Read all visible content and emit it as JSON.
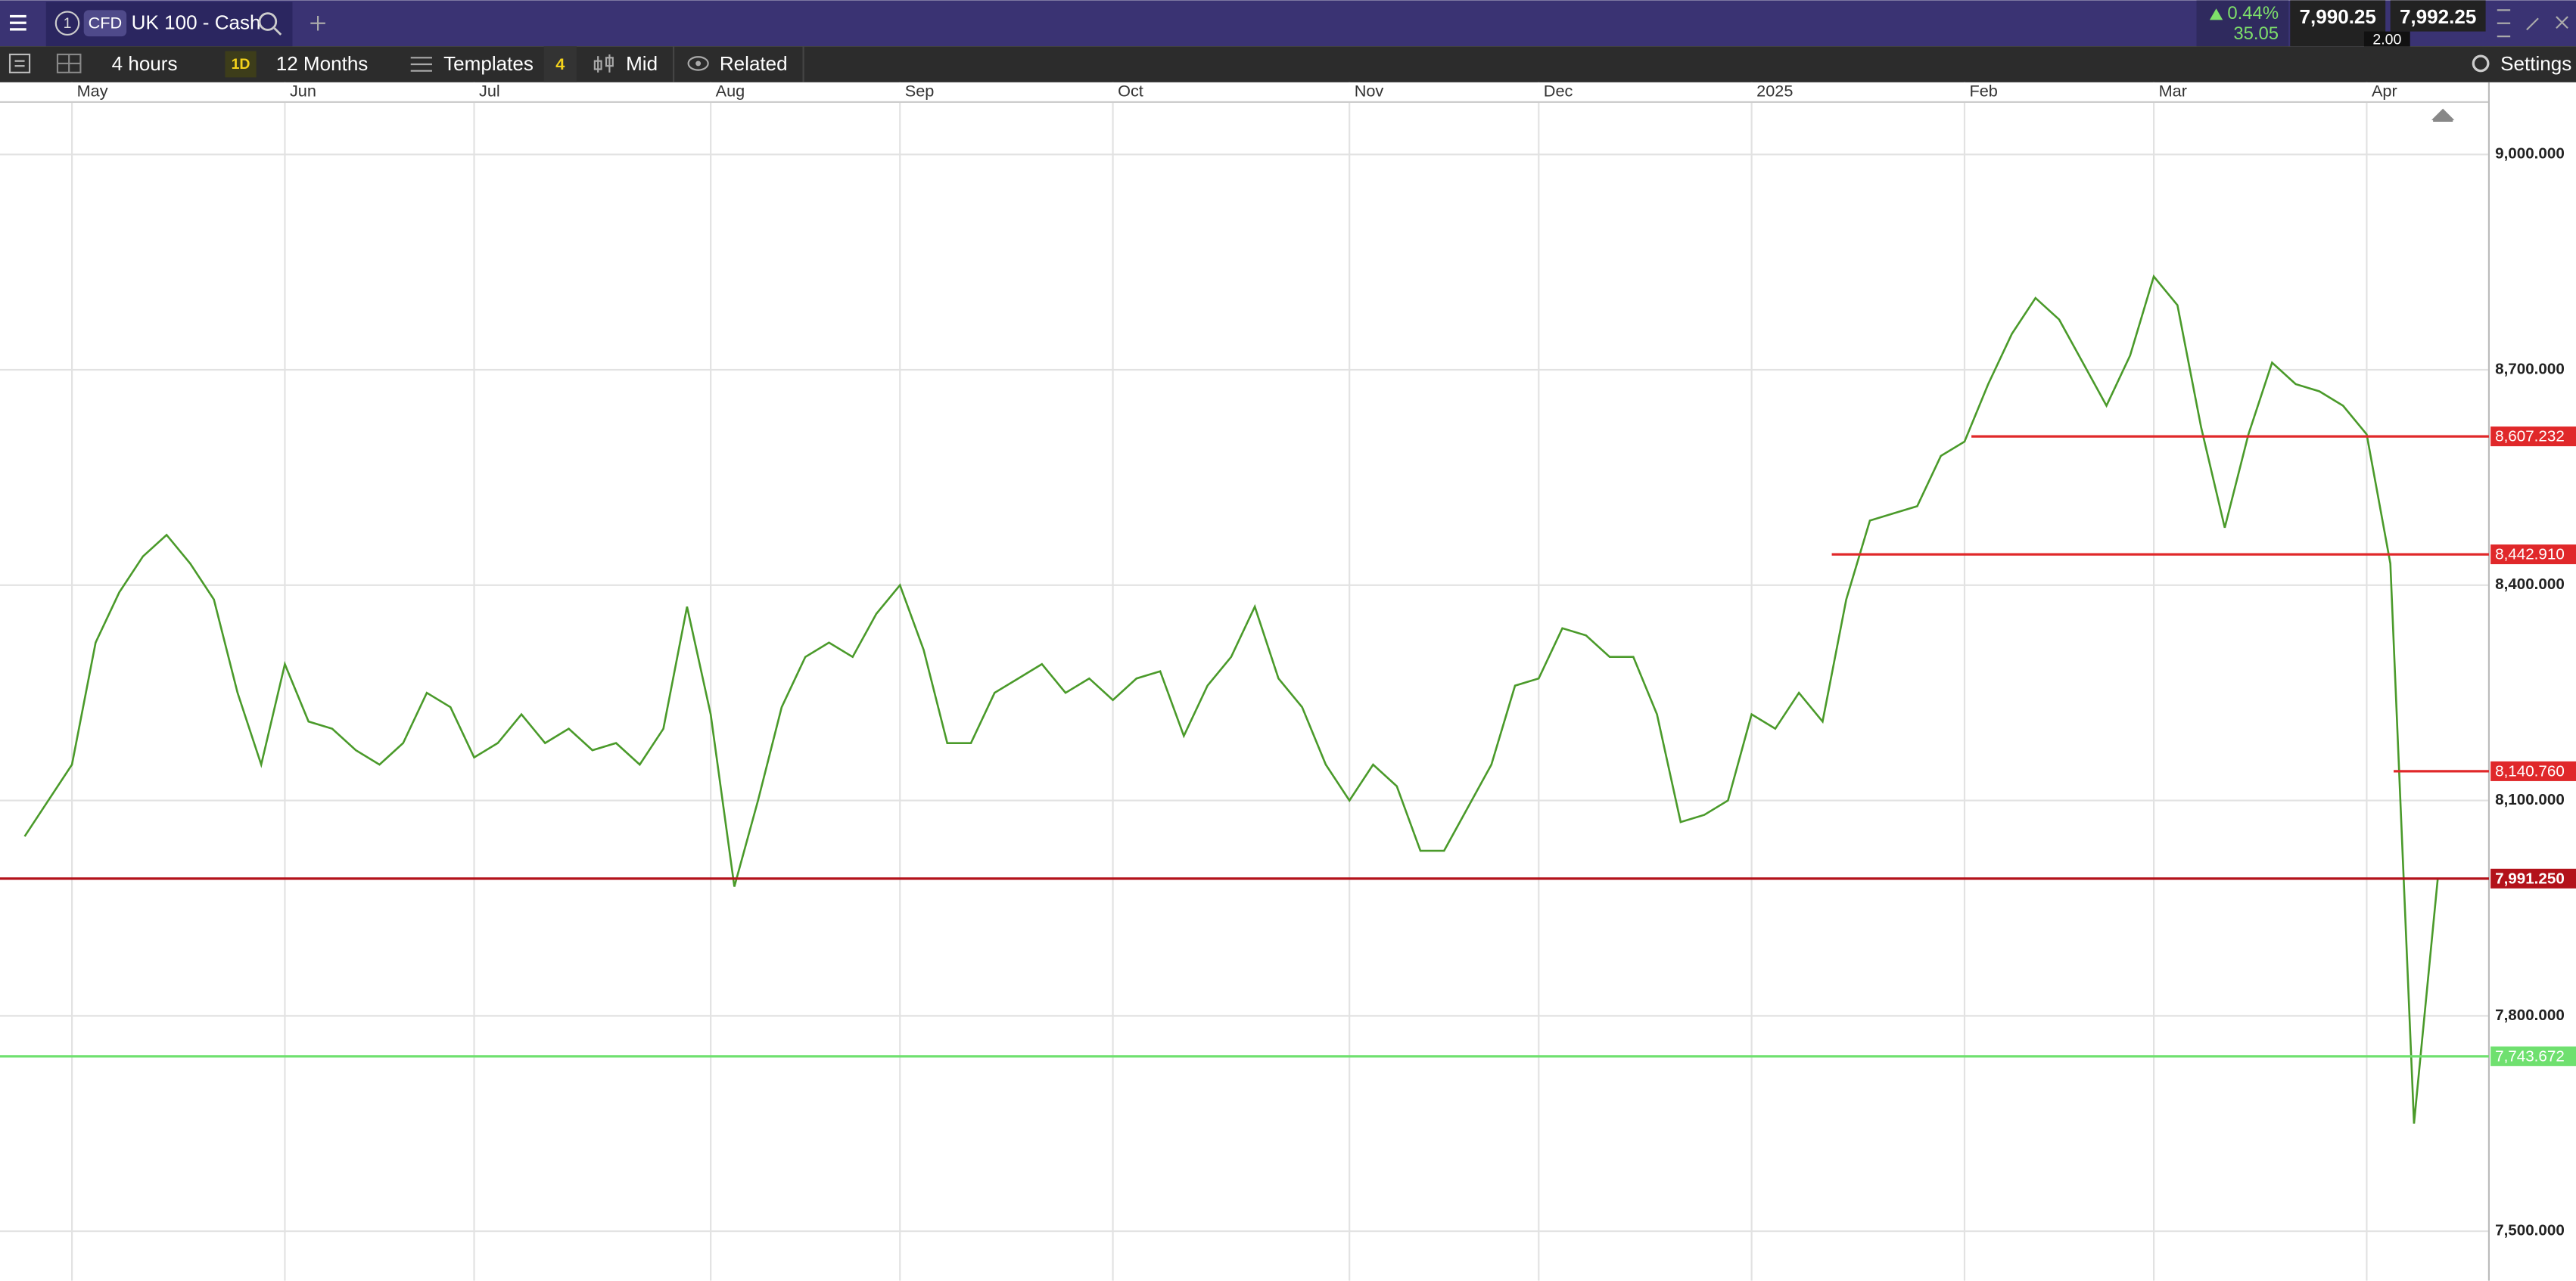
{
  "toolbar": {
    "instance": "1",
    "badge": "CFD",
    "instrument": "UK 100 - Cash",
    "change_pct": "0.44%",
    "change": "35.05",
    "sell": "7,990.25",
    "spread": "2.00",
    "buy": "7,992.25"
  },
  "controls": {
    "interval": "4 hours",
    "period_badge": "1D",
    "range": "12 Months",
    "templates": "Templates",
    "indicator_count": "4",
    "price_type": "Mid",
    "related": "Related",
    "settings": "Settings"
  },
  "chart_data": {
    "type": "line",
    "color": "#4a9a2a",
    "categories": [
      null,
      null,
      "May",
      null,
      null,
      null,
      null,
      null,
      null,
      null,
      null,
      "Jun",
      null,
      null,
      null,
      null,
      null,
      null,
      null,
      "Jul",
      null,
      null,
      null,
      null,
      null,
      null,
      null,
      null,
      null,
      "Aug",
      null,
      null,
      null,
      null,
      null,
      null,
      null,
      "Sep",
      null,
      null,
      null,
      null,
      null,
      null,
      null,
      null,
      "Oct",
      null,
      null,
      null,
      null,
      null,
      null,
      null,
      null,
      null,
      "Nov",
      null,
      null,
      null,
      null,
      null,
      null,
      null,
      "Dec",
      null,
      null,
      null,
      null,
      null,
      null,
      null,
      null,
      "2025",
      null,
      null,
      null,
      null,
      null,
      null,
      null,
      null,
      "Feb",
      null,
      null,
      null,
      null,
      null,
      null,
      null,
      "Mar",
      null,
      null,
      null,
      null,
      null,
      null,
      null,
      null,
      "Apr",
      null,
      null,
      null
    ],
    "values": [
      8050,
      8100,
      8150,
      8320,
      8390,
      8440,
      8470,
      8430,
      8380,
      8250,
      8150,
      8290,
      8210,
      8200,
      8170,
      8150,
      8180,
      8250,
      8230,
      8160,
      8180,
      8220,
      8180,
      8200,
      8170,
      8180,
      8150,
      8200,
      8370,
      8220,
      7980,
      8100,
      8230,
      8300,
      8320,
      8300,
      8360,
      8400,
      8310,
      8180,
      8180,
      8250,
      8270,
      8290,
      8250,
      8270,
      8240,
      8270,
      8280,
      8190,
      8260,
      8300,
      8370,
      8270,
      8230,
      8150,
      8100,
      8150,
      8120,
      8030,
      8030,
      8090,
      8150,
      8260,
      8270,
      8340,
      8330,
      8300,
      8300,
      8220,
      8070,
      8080,
      8100,
      8220,
      8200,
      8250,
      8210,
      8380,
      8490,
      8500,
      8510,
      8580,
      8600,
      8680,
      8750,
      8800,
      8770,
      8710,
      8650,
      8720,
      8830,
      8790,
      8620,
      8480,
      8610,
      8710,
      8680,
      8670,
      8650,
      8610,
      8430,
      7650,
      7990
    ],
    "levels": [
      {
        "value": 8607.232,
        "label": "8,607.232",
        "color": "#e0282a"
      },
      {
        "value": 8442.91,
        "label": "8,442.910",
        "color": "#e0282a"
      },
      {
        "value": 8140.76,
        "label": "8,140.760",
        "color": "#e0282a"
      },
      {
        "value": 7991.25,
        "label": "7,991.250",
        "color": "#b3121a"
      },
      {
        "value": 7743.672,
        "label": "7,743.672",
        "color": "#6fe06f"
      }
    ],
    "ylim": [
      7431,
      9073
    ],
    "yticks": [
      {
        "value": 7500,
        "label": "7,500.000"
      },
      {
        "value": 7800,
        "label": "7,800.000"
      },
      {
        "value": 8100,
        "label": "8,100.000"
      },
      {
        "value": 8400,
        "label": "8,400.000"
      },
      {
        "value": 8700,
        "label": "8,700.000"
      },
      {
        "value": 9000,
        "label": "9,000.000"
      }
    ],
    "grid": true
  }
}
